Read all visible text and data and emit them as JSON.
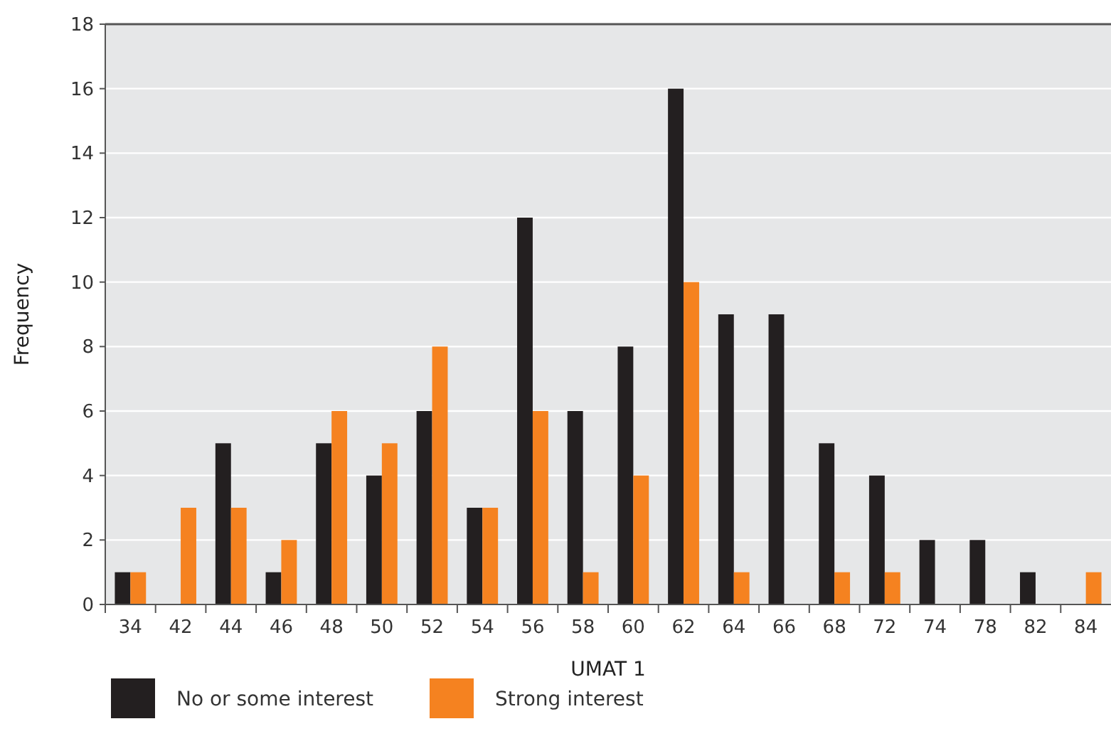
{
  "chart_data": {
    "type": "bar",
    "xlabel": "UMAT 1",
    "ylabel": "Frequency",
    "categories": [
      "34",
      "42",
      "44",
      "46",
      "48",
      "50",
      "52",
      "54",
      "56",
      "58",
      "60",
      "62",
      "64",
      "66",
      "68",
      "72",
      "74",
      "78",
      "82",
      "84"
    ],
    "series": [
      {
        "name": "No or some interest",
        "color": "#231f20",
        "values": [
          1,
          0,
          5,
          1,
          5,
          4,
          6,
          3,
          12,
          6,
          8,
          16,
          9,
          9,
          5,
          4,
          2,
          2,
          1,
          0
        ]
      },
      {
        "name": "Strong interest",
        "color": "#f58220",
        "values": [
          1,
          3,
          3,
          2,
          6,
          5,
          8,
          3,
          6,
          1,
          4,
          10,
          1,
          0,
          1,
          1,
          0,
          0,
          0,
          1
        ]
      }
    ],
    "ylim": [
      0,
      18
    ],
    "yticks": [
      0,
      2,
      4,
      6,
      8,
      10,
      12,
      14,
      16,
      18
    ],
    "grid": "y",
    "legend": "bottom"
  }
}
